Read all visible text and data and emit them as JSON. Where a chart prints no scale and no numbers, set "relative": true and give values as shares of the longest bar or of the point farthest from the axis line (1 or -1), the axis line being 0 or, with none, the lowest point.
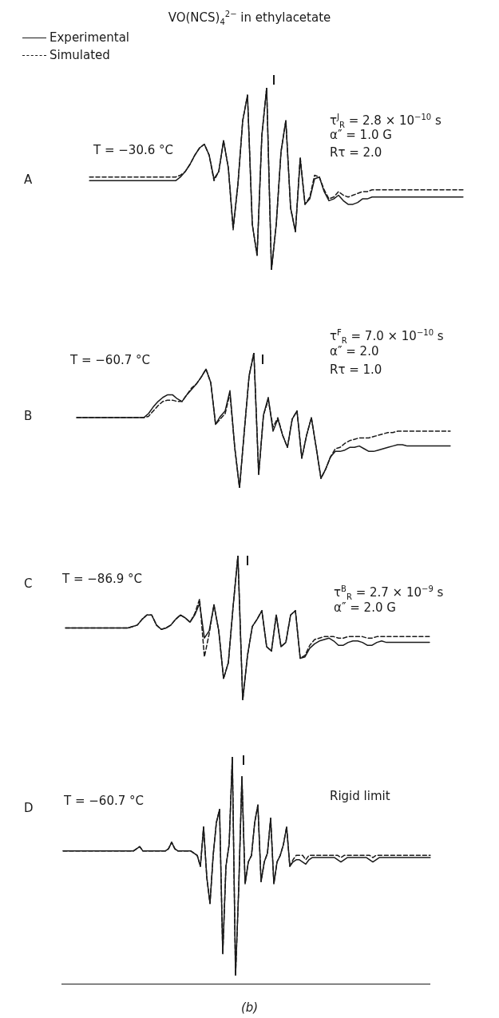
{
  "chart_data": [
    {
      "type": "line",
      "title": "VO(NCS)$_{4}$$^{2−}$ in ethylacetate",
      "relative": true,
      "marker": "none",
      "legend": "top left",
      "annotations": [
        "A",
        "T = −30.6 °C",
        "τ$^{J}$$_{R}$ = 2.8 × 10$^{−10}$ s",
        "α″ = 1.0 G",
        "Rτ = 2.0"
      ],
      "categories": [
        null,
        null,
        null,
        null,
        null,
        null,
        null,
        null,
        null,
        null,
        null,
        null,
        null,
        null,
        null,
        null,
        null,
        null,
        null,
        null,
        null,
        null,
        null,
        null,
        null,
        null,
        null,
        null,
        null,
        null,
        null,
        null,
        null,
        null,
        null,
        null,
        null,
        null,
        null,
        null,
        null,
        null,
        null,
        null,
        null,
        null,
        null,
        null,
        null,
        null,
        null,
        null,
        null,
        null,
        null,
        null,
        null,
        null,
        null,
        null,
        null,
        null,
        null,
        null,
        null,
        null,
        null,
        null,
        null,
        null,
        null,
        null,
        null,
        null,
        null,
        null,
        null,
        null,
        null
      ],
      "series": [
        {
          "name": "Experimental",
          "color": "#1a1a1a",
          "line_style": "solid",
          "values": [
            0.49,
            0.49,
            0.49,
            0.49,
            0.49,
            0.49,
            0.49,
            0.49,
            0.49,
            0.49,
            0.49,
            0.49,
            0.49,
            0.49,
            0.49,
            0.49,
            0.49,
            0.49,
            0.49,
            0.51,
            0.54,
            0.58,
            0.63,
            0.67,
            0.69,
            0.63,
            0.5,
            0.54,
            0.71,
            0.56,
            0.23,
            0.47,
            0.82,
            0.96,
            0.25,
            0.08,
            0.74,
            1.0,
            0.0,
            0.25,
            0.65,
            0.82,
            0.34,
            0.21,
            0.61,
            0.36,
            0.39,
            0.5,
            0.51,
            0.43,
            0.38,
            0.39,
            0.41,
            0.38,
            0.36,
            0.36,
            0.37,
            0.39,
            0.39,
            0.4,
            0.4,
            0.4,
            0.4,
            0.4,
            0.4,
            0.4,
            0.4,
            0.4,
            0.4,
            0.4,
            0.4,
            0.4,
            0.4,
            0.4,
            0.4,
            0.4,
            0.4,
            0.4,
            0.4
          ]
        },
        {
          "name": "Simulated",
          "color": "#1a1a1a",
          "line_style": "dashed",
          "values": [
            0.51,
            0.51,
            0.51,
            0.51,
            0.51,
            0.51,
            0.51,
            0.51,
            0.51,
            0.51,
            0.51,
            0.51,
            0.51,
            0.51,
            0.51,
            0.51,
            0.51,
            0.51,
            0.51,
            0.52,
            0.54,
            0.58,
            0.63,
            0.67,
            0.69,
            0.63,
            0.49,
            0.54,
            0.71,
            0.56,
            0.22,
            0.47,
            0.82,
            0.96,
            0.25,
            0.08,
            0.74,
            1.0,
            0.0,
            0.25,
            0.65,
            0.82,
            0.34,
            0.21,
            0.62,
            0.36,
            0.4,
            0.52,
            0.51,
            0.44,
            0.39,
            0.4,
            0.43,
            0.41,
            0.4,
            0.41,
            0.42,
            0.43,
            0.43,
            0.44,
            0.44,
            0.44,
            0.44,
            0.44,
            0.44,
            0.44,
            0.44,
            0.44,
            0.44,
            0.44,
            0.44,
            0.44,
            0.44,
            0.44,
            0.44,
            0.44,
            0.44,
            0.44,
            0.44
          ]
        }
      ]
    },
    {
      "type": "line",
      "relative": true,
      "marker": "none",
      "annotations": [
        "B",
        "T = −60.7 °C",
        "τ$^{F}$$_{R}$ = 7.0 × 10$^{−10}$ s",
        "α″ = 2.0",
        "Rτ = 1.0"
      ],
      "categories": [
        null,
        null,
        null,
        null,
        null,
        null,
        null,
        null,
        null,
        null,
        null,
        null,
        null,
        null,
        null,
        null,
        null,
        null,
        null,
        null,
        null,
        null,
        null,
        null,
        null,
        null,
        null,
        null,
        null,
        null,
        null,
        null,
        null,
        null,
        null,
        null,
        null,
        null,
        null,
        null,
        null,
        null,
        null,
        null,
        null,
        null,
        null,
        null,
        null,
        null,
        null,
        null,
        null,
        null,
        null,
        null,
        null,
        null,
        null,
        null,
        null,
        null,
        null,
        null,
        null,
        null,
        null,
        null,
        null,
        null,
        null,
        null,
        null,
        null,
        null,
        null,
        null,
        null,
        null
      ],
      "series": [
        {
          "color": "#1a1a1a",
          "line_style": "solid",
          "values": [
            0.52,
            0.52,
            0.52,
            0.52,
            0.52,
            0.52,
            0.52,
            0.52,
            0.52,
            0.52,
            0.52,
            0.52,
            0.52,
            0.52,
            0.52,
            0.55,
            0.6,
            0.64,
            0.67,
            0.69,
            0.69,
            0.66,
            0.64,
            0.69,
            0.73,
            0.77,
            0.82,
            0.88,
            0.78,
            0.47,
            0.53,
            0.57,
            0.72,
            0.3,
            0.0,
            0.42,
            0.83,
            1.0,
            0.1,
            0.54,
            0.67,
            0.42,
            0.51,
            0.39,
            0.3,
            0.51,
            0.57,
            0.22,
            0.39,
            0.52,
            0.3,
            0.07,
            0.14,
            0.23,
            0.27,
            0.27,
            0.28,
            0.3,
            0.3,
            0.31,
            0.29,
            0.27,
            0.27,
            0.28,
            0.29,
            0.3,
            0.31,
            0.32,
            0.32,
            0.31,
            0.31,
            0.31,
            0.31,
            0.31,
            0.31,
            0.31,
            0.31,
            0.31,
            0.31
          ]
        },
        {
          "color": "#1a1a1a",
          "line_style": "dashed",
          "values": [
            0.52,
            0.52,
            0.52,
            0.52,
            0.52,
            0.52,
            0.52,
            0.52,
            0.52,
            0.52,
            0.52,
            0.52,
            0.52,
            0.52,
            0.52,
            0.53,
            0.57,
            0.61,
            0.64,
            0.65,
            0.65,
            0.64,
            0.64,
            0.69,
            0.74,
            0.77,
            0.82,
            0.88,
            0.78,
            0.47,
            0.51,
            0.55,
            0.7,
            0.3,
            0.0,
            0.42,
            0.83,
            1.0,
            0.1,
            0.54,
            0.65,
            0.45,
            0.52,
            0.39,
            0.3,
            0.51,
            0.57,
            0.22,
            0.39,
            0.52,
            0.3,
            0.07,
            0.14,
            0.23,
            0.29,
            0.3,
            0.33,
            0.35,
            0.36,
            0.37,
            0.37,
            0.37,
            0.38,
            0.39,
            0.4,
            0.41,
            0.41,
            0.42,
            0.42,
            0.42,
            0.42,
            0.42,
            0.42,
            0.42,
            0.42,
            0.42,
            0.42,
            0.42,
            0.42
          ]
        }
      ]
    },
    {
      "type": "line",
      "relative": true,
      "marker": "none",
      "annotations": [
        "C",
        "T = −86.9 °C",
        "τ$^{B}$$_{R}$ = 2.7 × 10$^{−9}$ s",
        "α″ = 2.0 G"
      ],
      "categories": [
        null,
        null,
        null,
        null,
        null,
        null,
        null,
        null,
        null,
        null,
        null,
        null,
        null,
        null,
        null,
        null,
        null,
        null,
        null,
        null,
        null,
        null,
        null,
        null,
        null,
        null,
        null,
        null,
        null,
        null,
        null,
        null,
        null,
        null,
        null,
        null,
        null,
        null,
        null,
        null,
        null,
        null,
        null,
        null,
        null,
        null,
        null,
        null,
        null,
        null,
        null,
        null,
        null,
        null,
        null,
        null,
        null,
        null,
        null,
        null,
        null,
        null,
        null,
        null,
        null,
        null,
        null,
        null,
        null,
        null,
        null,
        null,
        null,
        null,
        null,
        null,
        null
      ],
      "series": [
        {
          "color": "#1a1a1a",
          "line_style": "solid",
          "values": [
            0.5,
            0.5,
            0.5,
            0.5,
            0.5,
            0.5,
            0.5,
            0.5,
            0.5,
            0.5,
            0.5,
            0.5,
            0.5,
            0.5,
            0.51,
            0.52,
            0.56,
            0.59,
            0.59,
            0.52,
            0.49,
            0.5,
            0.52,
            0.56,
            0.59,
            0.57,
            0.54,
            0.59,
            0.67,
            0.43,
            0.48,
            0.66,
            0.48,
            0.15,
            0.26,
            0.65,
            1.0,
            0.0,
            0.31,
            0.51,
            0.56,
            0.62,
            0.37,
            0.34,
            0.59,
            0.37,
            0.4,
            0.59,
            0.62,
            0.29,
            0.3,
            0.36,
            0.39,
            0.41,
            0.42,
            0.43,
            0.41,
            0.38,
            0.38,
            0.4,
            0.41,
            0.41,
            0.4,
            0.38,
            0.38,
            0.4,
            0.41,
            0.4,
            0.4,
            0.4,
            0.4,
            0.4,
            0.4,
            0.4,
            0.4,
            0.4,
            0.4
          ]
        },
        {
          "color": "#1a1a1a",
          "line_style": "dashed",
          "values": [
            0.5,
            0.5,
            0.5,
            0.5,
            0.5,
            0.5,
            0.5,
            0.5,
            0.5,
            0.5,
            0.5,
            0.5,
            0.5,
            0.5,
            0.51,
            0.52,
            0.56,
            0.59,
            0.59,
            0.52,
            0.49,
            0.5,
            0.52,
            0.56,
            0.59,
            0.57,
            0.54,
            0.6,
            0.7,
            0.3,
            0.46,
            0.66,
            0.48,
            0.15,
            0.26,
            0.65,
            1.0,
            0.0,
            0.31,
            0.51,
            0.56,
            0.62,
            0.37,
            0.34,
            0.59,
            0.37,
            0.4,
            0.59,
            0.62,
            0.29,
            0.31,
            0.38,
            0.42,
            0.43,
            0.44,
            0.44,
            0.44,
            0.43,
            0.43,
            0.44,
            0.44,
            0.44,
            0.44,
            0.43,
            0.43,
            0.44,
            0.44,
            0.44,
            0.44,
            0.44,
            0.44,
            0.44,
            0.44,
            0.44,
            0.44,
            0.44,
            0.44
          ]
        }
      ]
    },
    {
      "type": "line",
      "relative": true,
      "marker": "none",
      "xlabel": "(b)",
      "annotations": [
        "D",
        "T = −60.7 °C",
        "Rigid limit"
      ],
      "categories": [
        null,
        null,
        null,
        null,
        null,
        null,
        null,
        null,
        null,
        null,
        null,
        null,
        null,
        null,
        null,
        null,
        null,
        null,
        null,
        null,
        null,
        null,
        null,
        null,
        null,
        null,
        null,
        null,
        null,
        null,
        null,
        null,
        null,
        null,
        null,
        null,
        null,
        null,
        null,
        null,
        null,
        null,
        null,
        null,
        null,
        null,
        null,
        null,
        null,
        null,
        null,
        null,
        null,
        null,
        null,
        null,
        null,
        null,
        null,
        null,
        null,
        null,
        null,
        null,
        null,
        null,
        null,
        null,
        null,
        null,
        null,
        null,
        null,
        null,
        null,
        null,
        null,
        null,
        null,
        null,
        null,
        null,
        null,
        null,
        null,
        null,
        null,
        null,
        null,
        null,
        null,
        null,
        null,
        null,
        null,
        null,
        null,
        null,
        null,
        null,
        null,
        null,
        null,
        null,
        null,
        null,
        null,
        null,
        null,
        null,
        null,
        null,
        null,
        null,
        null,
        null
      ],
      "series": [
        {
          "color": "#1a1a1a",
          "line_style": "solid",
          "values": [
            0.57,
            0.57,
            0.57,
            0.57,
            0.57,
            0.57,
            0.57,
            0.57,
            0.57,
            0.57,
            0.57,
            0.57,
            0.57,
            0.57,
            0.57,
            0.57,
            0.57,
            0.57,
            0.57,
            0.57,
            0.57,
            0.57,
            0.57,
            0.58,
            0.59,
            0.57,
            0.57,
            0.57,
            0.57,
            0.57,
            0.57,
            0.57,
            0.57,
            0.58,
            0.61,
            0.58,
            0.57,
            0.57,
            0.57,
            0.57,
            0.57,
            0.56,
            0.55,
            0.5,
            0.68,
            0.45,
            0.33,
            0.55,
            0.7,
            0.76,
            0.1,
            0.5,
            0.6,
            1.0,
            0.0,
            0.4,
            0.91,
            0.42,
            0.52,
            0.55,
            0.7,
            0.78,
            0.43,
            0.52,
            0.56,
            0.72,
            0.42,
            0.52,
            0.55,
            0.6,
            0.68,
            0.5,
            0.52,
            0.53,
            0.53,
            0.52,
            0.51,
            0.53,
            0.54,
            0.54,
            0.54,
            0.54,
            0.54,
            0.54,
            0.54,
            0.54,
            0.53,
            0.52,
            0.53,
            0.54,
            0.54,
            0.54,
            0.54,
            0.54,
            0.54,
            0.54,
            0.53,
            0.52,
            0.53,
            0.54,
            0.54,
            0.54,
            0.54,
            0.54,
            0.54,
            0.54,
            0.54,
            0.54,
            0.54,
            0.54,
            0.54,
            0.54,
            0.54,
            0.54,
            0.54,
            0.54
          ]
        },
        {
          "color": "#1a1a1a",
          "line_style": "dashed",
          "values": [
            0.57,
            0.57,
            0.57,
            0.57,
            0.57,
            0.57,
            0.57,
            0.57,
            0.57,
            0.57,
            0.57,
            0.57,
            0.57,
            0.57,
            0.57,
            0.57,
            0.57,
            0.57,
            0.57,
            0.57,
            0.57,
            0.57,
            0.57,
            0.58,
            0.59,
            0.57,
            0.57,
            0.57,
            0.57,
            0.57,
            0.57,
            0.57,
            0.57,
            0.58,
            0.61,
            0.58,
            0.57,
            0.57,
            0.57,
            0.57,
            0.57,
            0.56,
            0.55,
            0.5,
            0.68,
            0.45,
            0.33,
            0.55,
            0.7,
            0.76,
            0.1,
            0.5,
            0.6,
            1.0,
            0.0,
            0.4,
            0.91,
            0.42,
            0.52,
            0.55,
            0.7,
            0.78,
            0.43,
            0.52,
            0.56,
            0.72,
            0.42,
            0.52,
            0.55,
            0.6,
            0.68,
            0.5,
            0.53,
            0.55,
            0.55,
            0.55,
            0.53,
            0.55,
            0.55,
            0.55,
            0.55,
            0.55,
            0.55,
            0.55,
            0.55,
            0.55,
            0.55,
            0.54,
            0.55,
            0.55,
            0.55,
            0.55,
            0.55,
            0.55,
            0.55,
            0.55,
            0.55,
            0.54,
            0.55,
            0.55,
            0.55,
            0.55,
            0.55,
            0.55,
            0.55,
            0.55,
            0.55,
            0.55,
            0.55,
            0.55,
            0.55,
            0.55,
            0.55,
            0.55,
            0.55,
            0.55
          ]
        }
      ]
    }
  ]
}
